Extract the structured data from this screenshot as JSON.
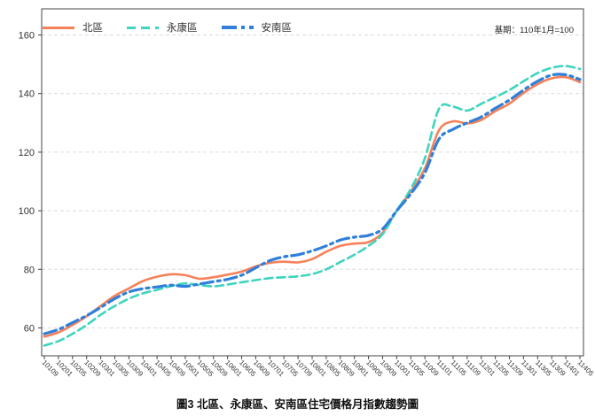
{
  "figure": {
    "base_period_note": "基期：110年1月=100",
    "caption": "圖3 北區、永康區、安南區住宅價格月指數趨勢圖"
  },
  "colors": {
    "grid": "#dcdcdc",
    "spine": "#444444",
    "tick_text": "#333333"
  },
  "chart_data": {
    "type": "line",
    "title": "",
    "xlabel": "",
    "ylabel": "",
    "grid": "horizontal-dashed",
    "legend_position": "top-left-inside",
    "ylim": [
      50,
      168
    ],
    "y_ticks": [
      60,
      80,
      100,
      120,
      140,
      160
    ],
    "x_tick_labels": [
      "10109",
      "10201",
      "10205",
      "10209",
      "10301",
      "10305",
      "10309",
      "10401",
      "10405",
      "10409",
      "10501",
      "10505",
      "10509",
      "10601",
      "10605",
      "10609",
      "10701",
      "10705",
      "10709",
      "10801",
      "10805",
      "10809",
      "10901",
      "10905",
      "10909",
      "11001",
      "11005",
      "11009",
      "11101",
      "11105",
      "11109",
      "11201",
      "11205",
      "11209",
      "11301",
      "11305",
      "11309",
      "11401",
      "11405"
    ],
    "series": [
      {
        "name": "北區",
        "color": "#f5815a",
        "style": "solid",
        "width": 2.6,
        "values": [
          57,
          58.5,
          61,
          64,
          67.5,
          71,
          73.5,
          76,
          77.5,
          78.3,
          78,
          76.8,
          77.3,
          78.2,
          79.2,
          81,
          82.2,
          82.6,
          82.4,
          83.5,
          86,
          88,
          88.8,
          89.3,
          92.5,
          100,
          106.5,
          114.5,
          127.5,
          130.5,
          129.8,
          131,
          134,
          136.6,
          140.2,
          143.2,
          145.2,
          145.6,
          143.9
        ]
      },
      {
        "name": "永康區",
        "color": "#3ed4be",
        "style": "dashed",
        "width": 2.6,
        "values": [
          54,
          55.5,
          58,
          61,
          64.5,
          67.5,
          70,
          71.8,
          73,
          74.3,
          75.2,
          74.6,
          74.2,
          74.8,
          75.6,
          76.3,
          77,
          77.3,
          77.6,
          78.4,
          80,
          82.5,
          85,
          88,
          92,
          100,
          107.5,
          118,
          134.8,
          135.5,
          134.2,
          136.5,
          138.8,
          141.2,
          144.2,
          147,
          148.8,
          149.4,
          148.4
        ]
      },
      {
        "name": "安南區",
        "color": "#2f7fdb",
        "style": "dash-dot",
        "width": 3.2,
        "values": [
          58,
          59.5,
          61.8,
          64.2,
          67,
          70,
          72.3,
          73.4,
          74,
          74.6,
          74.2,
          75,
          75.8,
          76.6,
          78,
          80.5,
          83,
          84.3,
          85,
          86.3,
          88,
          90,
          91,
          91.6,
          93.8,
          100,
          105.8,
          113,
          124.5,
          127.8,
          130,
          132,
          135,
          137.8,
          141.2,
          144.2,
          146.3,
          146.4,
          144.8
        ]
      }
    ]
  }
}
